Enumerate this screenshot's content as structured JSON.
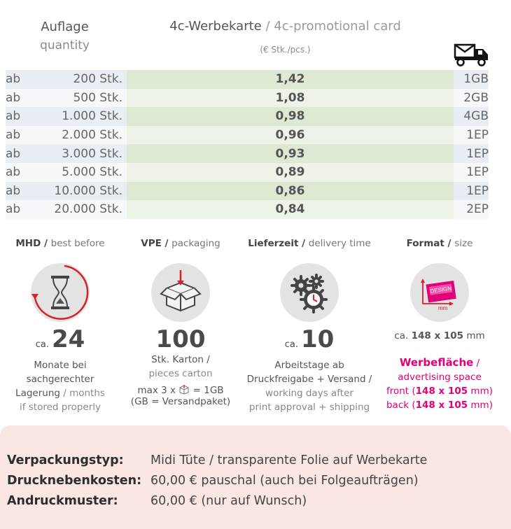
{
  "header": {
    "qty_de": "Auflage",
    "qty_en": "quantity",
    "product_de": "4c-Werbekarte",
    "product_sep": " / ",
    "product_en": "4c-promotional card",
    "unit": "(€ Stk./pcs.)",
    "shipping_icon": "truck-mail-icon"
  },
  "rows": [
    {
      "prefix": "ab",
      "qty": "200 Stk.",
      "price": "1,42",
      "ship": "1GB"
    },
    {
      "prefix": "ab",
      "qty": "500 Stk.",
      "price": "1,08",
      "ship": "2GB"
    },
    {
      "prefix": "ab",
      "qty": "1.000 Stk.",
      "price": "0,98",
      "ship": "4GB"
    },
    {
      "prefix": "ab",
      "qty": "2.000 Stk.",
      "price": "0,96",
      "ship": "1EP"
    },
    {
      "prefix": "ab",
      "qty": "3.000 Stk.",
      "price": "0,93",
      "ship": "1EP"
    },
    {
      "prefix": "ab",
      "qty": "5.000 Stk.",
      "price": "0,89",
      "ship": "1EP"
    },
    {
      "prefix": "ab",
      "qty": "10.000 Stk.",
      "price": "0,86",
      "ship": "1EP"
    },
    {
      "prefix": "ab",
      "qty": "20.000 Stk.",
      "price": "0,84",
      "ship": "2EP"
    }
  ],
  "mhd": {
    "head_de": "MHD",
    "head_en": "best before",
    "ca": "ca.",
    "value": "24",
    "l1": "Monate bei",
    "l2": "sachgerechter",
    "l3_de": "Lagerung",
    "l3_en": "months",
    "l4": "if stored properly",
    "icon": "hourglass-icon"
  },
  "vpe": {
    "head_de": "VPE",
    "head_en": "packaging",
    "value": "100",
    "l1": "Stk. Karton /",
    "l2": "pieces carton",
    "l3a": "max 3 x",
    "l3b": "= 1GB",
    "l4": "(GB = Versandpaket)",
    "icon": "box-icon"
  },
  "delivery": {
    "head_de": "Lieferzeit",
    "head_en": "delivery time",
    "ca": "ca.",
    "value": "10",
    "l1": "Arbeitstage ab",
    "l2": "Druckfreigabe + Versand /",
    "l3": "working days after",
    "l4": "print approval + shipping",
    "icon": "gears-clock-icon"
  },
  "format": {
    "head_de": "Format",
    "head_en": "size",
    "size_prefix": "ca.",
    "size": "148 x 105",
    "size_unit": "mm",
    "design_label": "DESIGN",
    "mm_label": "mm",
    "area_de": "Werbefläche",
    "area_en": "advertising space",
    "front_label": "front",
    "front": "148 x 105",
    "front_unit": "mm",
    "back_label": "back",
    "back": "148 x 105",
    "back_unit": "mm",
    "icon": "card-size-icon",
    "accent": "#e0007a"
  },
  "details": [
    {
      "key": "Verpackungstyp:",
      "value": "Midi Tüte / transparente Folie auf Werbekarte"
    },
    {
      "key": "Drucknebenkosten:",
      "value": "60,00 € pauschal (auch bei Folgeaufträgen)"
    },
    {
      "key": "Andruckmuster:",
      "value": "60,00 € (nur auf Wunsch)"
    }
  ]
}
